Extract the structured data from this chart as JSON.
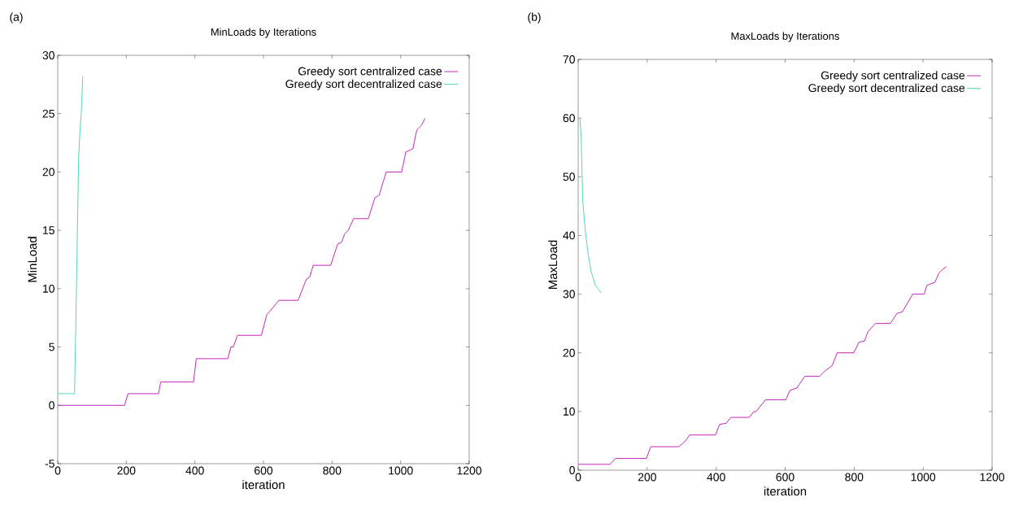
{
  "chart_data": [
    {
      "type": "line",
      "title": "MinLoads by Iterations",
      "xlabel": "iteration",
      "ylabel": "MinLoad",
      "annotations": [
        "(a)"
      ],
      "xlim": [
        0,
        1200
      ],
      "ylim": [
        -5,
        30
      ],
      "xticks": [
        0,
        200,
        400,
        600,
        800,
        1000,
        1200
      ],
      "yticks": [
        -5,
        0,
        5,
        10,
        15,
        20,
        25,
        30
      ],
      "grid": false,
      "legend": "top right",
      "marker": "none",
      "line_style": "solid",
      "series": [
        {
          "name": "Greedy sort centralized case",
          "color": "#c010b0",
          "x": [
            0,
            195,
            205,
            294,
            300,
            396,
            404,
            496,
            505,
            512,
            524,
            594,
            610,
            617,
            645,
            701,
            725,
            735,
            745,
            796,
            816,
            828,
            837,
            847,
            863,
            906,
            925,
            937,
            958,
            1003,
            1015,
            1036,
            1047,
            1061,
            1071
          ],
          "values": [
            0,
            0,
            1,
            1,
            2,
            2,
            4,
            4,
            5,
            5,
            6,
            6,
            7.8,
            8,
            9,
            9,
            10.8,
            11,
            12,
            12,
            13.8,
            14,
            14.7,
            15,
            16,
            16,
            17.8,
            18,
            20,
            20,
            21.7,
            22,
            23.6,
            24,
            24.6
          ]
        },
        {
          "name": "Greedy sort decentralized case",
          "color": "#40d0b0",
          "x": [
            0,
            49,
            53,
            57,
            61,
            65,
            69,
            73
          ],
          "values": [
            1,
            1,
            7.3,
            14.3,
            21.3,
            23.6,
            25.2,
            28.2
          ]
        }
      ]
    },
    {
      "type": "line",
      "title": "MaxLoads by Iterations",
      "xlabel": "iteration",
      "ylabel": "MaxLoad",
      "annotations": [
        "(b)"
      ],
      "xlim": [
        0,
        1200
      ],
      "ylim": [
        0,
        70
      ],
      "xticks": [
        0,
        200,
        400,
        600,
        800,
        1000,
        1200
      ],
      "yticks": [
        0,
        10,
        20,
        30,
        40,
        50,
        60,
        70
      ],
      "grid": false,
      "legend": "top right",
      "marker": "none",
      "line_style": "solid",
      "series": [
        {
          "name": "Greedy sort centralized case",
          "color": "#c010b0",
          "x": [
            0,
            92,
            108,
            198,
            210,
            292,
            311,
            323,
            398,
            410,
            429,
            443,
            496,
            508,
            516,
            543,
            602,
            614,
            634,
            657,
            700,
            715,
            736,
            751,
            799,
            814,
            830,
            840,
            862,
            905,
            924,
            940,
            970,
            1003,
            1011,
            1034,
            1046,
            1053,
            1067
          ],
          "values": [
            1,
            1,
            2,
            2,
            4,
            4,
            5,
            6,
            6,
            7.8,
            8,
            9,
            9,
            9.9,
            10,
            12,
            12,
            13.6,
            14,
            16,
            16,
            16.9,
            17.8,
            20,
            20,
            21.8,
            22,
            23.6,
            25,
            25,
            26.7,
            27,
            30,
            30,
            31.5,
            32,
            33.6,
            34,
            34.7
          ]
        },
        {
          "name": "Greedy sort decentralized case",
          "color": "#40d0b0",
          "x": [
            5,
            9,
            13,
            21,
            29,
            37,
            49,
            67
          ],
          "values": [
            60,
            56.4,
            46.1,
            40.5,
            36.8,
            34,
            31.6,
            30.2
          ]
        }
      ]
    }
  ]
}
